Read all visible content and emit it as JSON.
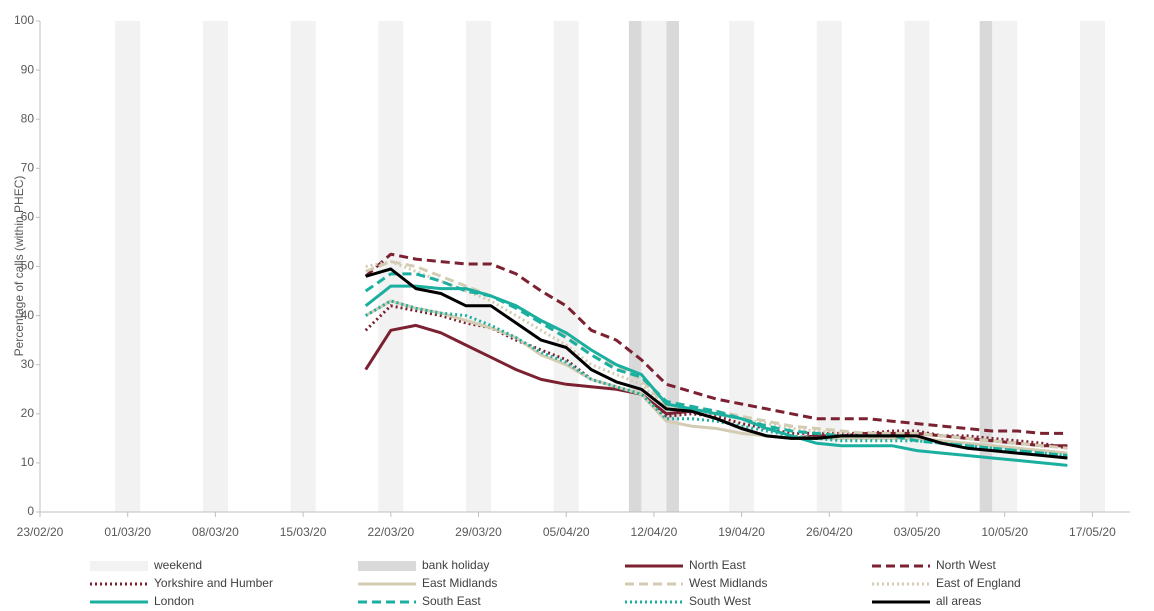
{
  "chart_data": {
    "type": "line",
    "y_label": "Percentage of calls (within PHEC)",
    "x": [
      "20/03/20",
      "22/03/20",
      "24/03/20",
      "26/03/20",
      "28/03/20",
      "30/03/20",
      "01/04/20",
      "03/04/20",
      "05/04/20",
      "07/04/20",
      "09/04/20",
      "11/04/20",
      "13/04/20",
      "15/04/20",
      "17/04/20",
      "19/04/20",
      "21/04/20",
      "23/04/20",
      "25/04/20",
      "27/04/20",
      "29/04/20",
      "01/05/20",
      "03/05/20",
      "05/05/20",
      "07/05/20",
      "09/05/20",
      "11/05/20",
      "13/05/20",
      "15/05/20"
    ],
    "xlim": [
      "23/02/20",
      "20/05/20"
    ],
    "xticks": [
      "23/02/20",
      "01/03/20",
      "08/03/20",
      "15/03/20",
      "22/03/20",
      "29/03/20",
      "05/04/20",
      "12/04/20",
      "19/04/20",
      "26/04/20",
      "03/05/20",
      "10/05/20",
      "17/05/20"
    ],
    "ylim": [
      0,
      100
    ],
    "yticks": [
      0,
      10,
      20,
      30,
      40,
      50,
      60,
      70,
      80,
      90,
      100
    ],
    "shading": [
      {
        "name": "weekend",
        "color": "#f2f2f2",
        "dates": [
          "29/02/20",
          "07/03/20",
          "14/03/20",
          "21/03/20",
          "28/03/20",
          "04/04/20",
          "11/04/20",
          "18/04/20",
          "25/04/20",
          "02/05/20",
          "09/05/20",
          "16/05/20"
        ]
      },
      {
        "name": "bank holiday",
        "color": "#d9d9d9",
        "dates": [
          "10/04/20",
          "13/04/20",
          "08/05/20"
        ]
      }
    ],
    "series": [
      {
        "name": "North East",
        "color": "#7b2131",
        "dash": "solid",
        "values": [
          29,
          37,
          38,
          36.5,
          34,
          31.5,
          29,
          27,
          26,
          25.5,
          25,
          24,
          20,
          20.5,
          19,
          17,
          15.5,
          15,
          15.5,
          15.5,
          16,
          16,
          16,
          15.5,
          15,
          14.5,
          14,
          13.5,
          13.5
        ]
      },
      {
        "name": "North West",
        "color": "#7b2131",
        "dash": "dashed",
        "values": [
          48,
          52.5,
          51.5,
          51,
          50.5,
          50.5,
          48.5,
          45,
          42,
          37,
          35,
          31,
          26,
          24.5,
          23,
          22,
          21,
          20,
          19,
          19,
          19,
          18.5,
          18,
          17.5,
          17,
          16.5,
          16.5,
          16,
          16
        ]
      },
      {
        "name": "Yorkshire and Humber",
        "color": "#7b2131",
        "dash": "dotted",
        "values": [
          37,
          42,
          41,
          40,
          38.5,
          37.5,
          35,
          33,
          31,
          27,
          25.5,
          24,
          19.5,
          20,
          19.5,
          18,
          17,
          16,
          16,
          16,
          16,
          16.5,
          16.5,
          15.5,
          15.5,
          15,
          14.5,
          14,
          13
        ]
      },
      {
        "name": "East Midlands",
        "color": "#d3ccb3",
        "dash": "solid",
        "values": [
          40,
          43,
          41.5,
          40.5,
          39,
          37.5,
          35.5,
          32,
          30,
          27,
          25.5,
          24,
          18.5,
          17.5,
          17,
          16,
          15.5,
          15,
          15,
          15,
          15,
          15,
          15,
          14.5,
          14,
          13.5,
          13,
          12.5,
          12
        ]
      },
      {
        "name": "West Midlands",
        "color": "#d3ccb3",
        "dash": "dashed",
        "values": [
          49,
          51,
          50,
          48,
          46,
          44,
          42,
          39,
          36,
          32,
          29.5,
          27,
          21.5,
          21,
          20.5,
          19.5,
          18.5,
          17.5,
          17,
          16.5,
          16,
          16,
          16,
          15.5,
          15,
          14.5,
          14,
          13.5,
          13
        ]
      },
      {
        "name": "East of England",
        "color": "#d3ccb3",
        "dash": "dotted",
        "values": [
          50,
          51,
          49,
          47,
          45,
          43,
          40,
          37,
          34,
          30,
          28,
          26,
          21,
          20.5,
          20,
          19,
          18,
          17,
          16.5,
          16,
          15.5,
          15.5,
          15,
          14.5,
          14,
          13.5,
          13,
          12.5,
          12
        ]
      },
      {
        "name": "London",
        "color": "#1aaf9f",
        "dash": "solid",
        "values": [
          42,
          46,
          46,
          45.5,
          45.5,
          44,
          42,
          39,
          36.5,
          33,
          30,
          28,
          22,
          21,
          20,
          19,
          17,
          15.5,
          14,
          13.5,
          13.5,
          13.5,
          12.5,
          12,
          11.5,
          11,
          10.5,
          10,
          9.5
        ]
      },
      {
        "name": "South East",
        "color": "#1aaf9f",
        "dash": "dashed",
        "values": [
          45,
          48.5,
          48.5,
          47,
          45,
          44,
          41.5,
          38.5,
          35.5,
          32,
          29,
          27.5,
          22.5,
          21.5,
          20.5,
          19,
          17.5,
          16.5,
          16,
          15.5,
          15.5,
          15.5,
          14.5,
          14,
          13.5,
          13,
          12.5,
          12,
          11.5
        ]
      },
      {
        "name": "South West",
        "color": "#1aaf9f",
        "dash": "dotted",
        "values": [
          40,
          43,
          41.5,
          40.5,
          40,
          38,
          35.5,
          32.5,
          30.5,
          27,
          25.5,
          24,
          19,
          19,
          18.5,
          17.5,
          16.5,
          15.5,
          15,
          14.5,
          14.5,
          14.5,
          14.5,
          14,
          13.5,
          13,
          12.5,
          12,
          11.5
        ]
      },
      {
        "name": "all areas",
        "color": "#000000",
        "dash": "solid",
        "values": [
          48,
          49.5,
          45.5,
          44.5,
          42,
          42,
          38.5,
          35,
          33.5,
          29,
          26.5,
          25,
          21,
          20.5,
          19,
          17,
          15.5,
          15,
          15,
          15.5,
          15.5,
          15.5,
          15.5,
          14,
          13,
          12.5,
          12,
          11.5,
          11
        ]
      }
    ]
  }
}
